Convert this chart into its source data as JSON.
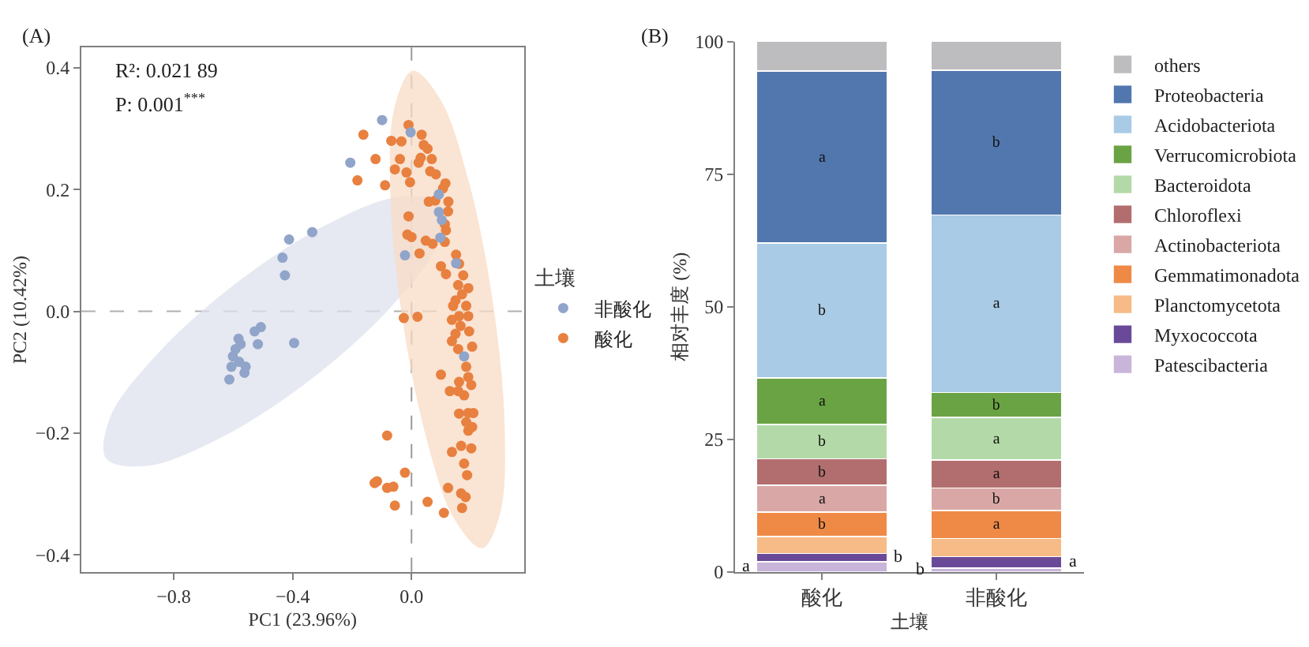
{
  "chart_data": [
    {
      "type": "scatter",
      "xlabel": "PC1 (23.96%)",
      "ylabel": "PC2 (10.42%)",
      "legend_title": "土壤",
      "legend": "right",
      "marker": "circle",
      "xlim": [
        -1.111,
        0.378
      ],
      "ylim": [
        -0.428,
        0.433
      ],
      "xticks": [
        {
          "value": -0.8,
          "label": "−0.8"
        },
        {
          "value": -0.4,
          "label": "−0.4"
        },
        {
          "value": 0,
          "label": "0.0"
        }
      ],
      "yticks": [
        {
          "value": -0.4,
          "label": "−0.4"
        },
        {
          "value": -0.2,
          "label": "−0.2"
        },
        {
          "value": 0,
          "label": "0.0"
        },
        {
          "value": 0.2,
          "label": "0.2"
        },
        {
          "value": 0.4,
          "label": "0.4"
        }
      ],
      "ref_lines": [
        {
          "axis": "x",
          "value": 0,
          "line_style": "dashed",
          "color": "#9a9a9a"
        },
        {
          "axis": "y",
          "value": 0,
          "line_style": "dashed",
          "color": "#b0b0b0"
        }
      ],
      "annotations": [
        "(A)",
        "R²: 0.021 89",
        "P: 0.001$^{***}$"
      ],
      "series": [
        {
          "type": "area",
          "marker": "none",
          "color": "#dee2ee",
          "x": [
            0.097,
            0.084,
            -0.077,
            -0.342,
            -0.639,
            -0.89,
            -1.027,
            -1.014,
            -0.853,
            -0.588,
            -0.291,
            -0.04
          ],
          "values": [
            0.176,
            0.108,
            0.003,
            -0.113,
            -0.207,
            -0.254,
            -0.242,
            -0.174,
            -0.069,
            0.047,
            0.141,
            0.188
          ]
        },
        {
          "type": "area",
          "marker": "none",
          "color": "#f9dcc6",
          "x": [
            0.238,
            0.299,
            0.313,
            0.274,
            0.195,
            0.097,
            0.004,
            -0.057,
            -0.071,
            -0.032,
            0.047,
            0.145
          ],
          "values": [
            -0.389,
            -0.33,
            -0.183,
            0.014,
            0.209,
            0.348,
            0.395,
            0.336,
            0.189,
            -0.008,
            -0.203,
            -0.342
          ]
        },
        {
          "name": "非酸化",
          "color": "#91a4c9",
          "x": [
            -0.099,
            -0.206,
            -0.334,
            -0.412,
            -0.434,
            -0.426,
            -0.507,
            -0.528,
            -0.517,
            -0.395,
            -0.582,
            -0.575,
            -0.592,
            -0.601,
            -0.58,
            -0.558,
            -0.606,
            -0.562,
            -0.613,
            -0.003,
            0.092,
            0.092,
            0.102,
            0.097,
            -0.022,
            0.15,
            0.177
          ],
          "values": [
            0.314,
            0.244,
            0.13,
            0.118,
            0.088,
            0.059,
            -0.026,
            -0.033,
            -0.054,
            -0.052,
            -0.045,
            -0.054,
            -0.062,
            -0.074,
            -0.083,
            -0.091,
            -0.091,
            -0.101,
            -0.112,
            0.294,
            0.192,
            0.163,
            0.15,
            0.121,
            0.092,
            0.079,
            -0.074
          ]
        },
        {
          "name": "酸化",
          "color": "#e8803f",
          "x": [
            -0.162,
            -0.01,
            -0.068,
            -0.034,
            0.034,
            0.041,
            0.054,
            0.031,
            -0.121,
            -0.039,
            0.068,
            0.024,
            -0.182,
            -0.056,
            -0.017,
            0.063,
            0.082,
            -0.089,
            -0.005,
            0.114,
            0.106,
            0.058,
            0.08,
            0.124,
            0.123,
            -0.01,
            0.112,
            0.116,
            -0.014,
            0.0,
            0.048,
            0.071,
            0.027,
            0.112,
            0.15,
            0.099,
            0.116,
            0.16,
            0.174,
            0.157,
            0.191,
            0.17,
            0.148,
            0.184,
            0.14,
            0.16,
            0.191,
            0.136,
            -0.026,
            0.02,
            0.165,
            0.194,
            0.148,
            0.204,
            0.136,
            0.157,
            0.184,
            0.191,
            0.099,
            0.16,
            0.201,
            0.129,
            0.157,
            0.177,
            0.191,
            0.16,
            0.208,
            0.184,
            0.204,
            0.191,
            -0.082,
            0.167,
            0.201,
            0.136,
            0.177,
            0.187,
            -0.022,
            -0.124,
            -0.116,
            -0.082,
            -0.061,
            -0.056,
            0.054,
            0.123,
            0.109,
            0.17,
            0.167,
            0.182
          ],
          "values": [
            0.29,
            0.306,
            0.28,
            0.279,
            0.29,
            0.273,
            0.267,
            0.252,
            0.25,
            0.25,
            0.25,
            0.244,
            0.215,
            0.233,
            0.228,
            0.23,
            0.225,
            0.207,
            0.212,
            0.21,
            0.202,
            0.18,
            0.182,
            0.18,
            0.164,
            0.156,
            0.143,
            0.133,
            0.126,
            0.122,
            0.116,
            0.111,
            0.095,
            0.114,
            0.093,
            0.074,
            0.061,
            0.078,
            0.059,
            0.043,
            0.038,
            0.028,
            0.018,
            0.009,
            0.009,
            -0.008,
            -0.008,
            -0.014,
            -0.011,
            -0.009,
            -0.024,
            -0.033,
            -0.037,
            -0.058,
            -0.049,
            -0.062,
            -0.091,
            -0.108,
            -0.104,
            -0.116,
            -0.121,
            -0.131,
            -0.131,
            -0.138,
            -0.167,
            -0.168,
            -0.167,
            -0.182,
            -0.19,
            -0.196,
            -0.204,
            -0.221,
            -0.225,
            -0.231,
            -0.25,
            -0.269,
            -0.265,
            -0.282,
            -0.279,
            -0.29,
            -0.288,
            -0.319,
            -0.313,
            -0.29,
            -0.331,
            -0.323,
            -0.299,
            -0.305
          ]
        }
      ]
    },
    {
      "type": "bar",
      "stacked": true,
      "xlabel": "土壤",
      "ylabel": "相对丰度 (%)",
      "legend": "top right",
      "categories": [
        "酸化",
        "非酸化"
      ],
      "ylim": [
        0,
        100
      ],
      "yticks": [
        0,
        25,
        50,
        75,
        100
      ],
      "annotations": [
        "(B)"
      ],
      "series": [
        {
          "name": "Patescibacteria",
          "color": "#c9b4da",
          "values": [
            1.9,
            0.7
          ],
          "value_labels": [
            "a",
            "b"
          ]
        },
        {
          "name": "Myxococcota",
          "color": "#6a4a98",
          "values": [
            1.6,
            2.2
          ],
          "value_labels": [
            "b",
            "a"
          ]
        },
        {
          "name": "Planctomycetota",
          "color": "#f6bb86",
          "values": [
            3.2,
            3.4
          ],
          "value_labels": [
            null,
            null
          ]
        },
        {
          "name": "Gemmatimonadota",
          "color": "#ef8a46",
          "values": [
            4.6,
            5.3
          ],
          "value_labels": [
            "b",
            "a"
          ]
        },
        {
          "name": "Actinobacteriota",
          "color": "#d9a8a6",
          "values": [
            5.0,
            4.2
          ],
          "value_labels": [
            "a",
            "b"
          ]
        },
        {
          "name": "Chloroflexi",
          "color": "#b26e6e",
          "values": [
            5.0,
            5.3
          ],
          "value_labels": [
            "b",
            "a"
          ]
        },
        {
          "name": "Bacteroidota",
          "color": "#b4d9a8",
          "values": [
            6.5,
            8.0
          ],
          "value_labels": [
            "b",
            "a"
          ]
        },
        {
          "name": "Verrucomicrobiota",
          "color": "#6aa343",
          "values": [
            8.8,
            4.7
          ],
          "value_labels": [
            "a",
            "b"
          ]
        },
        {
          "name": "Acidobacteriota",
          "color": "#a9cbe5",
          "values": [
            25.4,
            33.5
          ],
          "value_labels": [
            "b",
            "a"
          ]
        },
        {
          "name": "Proteobacteria",
          "color": "#5277ae",
          "values": [
            32.4,
            27.3
          ],
          "value_labels": [
            "a",
            "b"
          ]
        },
        {
          "name": "others",
          "color": "#bdbdbf",
          "values": [
            5.6,
            5.4
          ],
          "value_labels": [
            null,
            null
          ]
        }
      ]
    }
  ]
}
